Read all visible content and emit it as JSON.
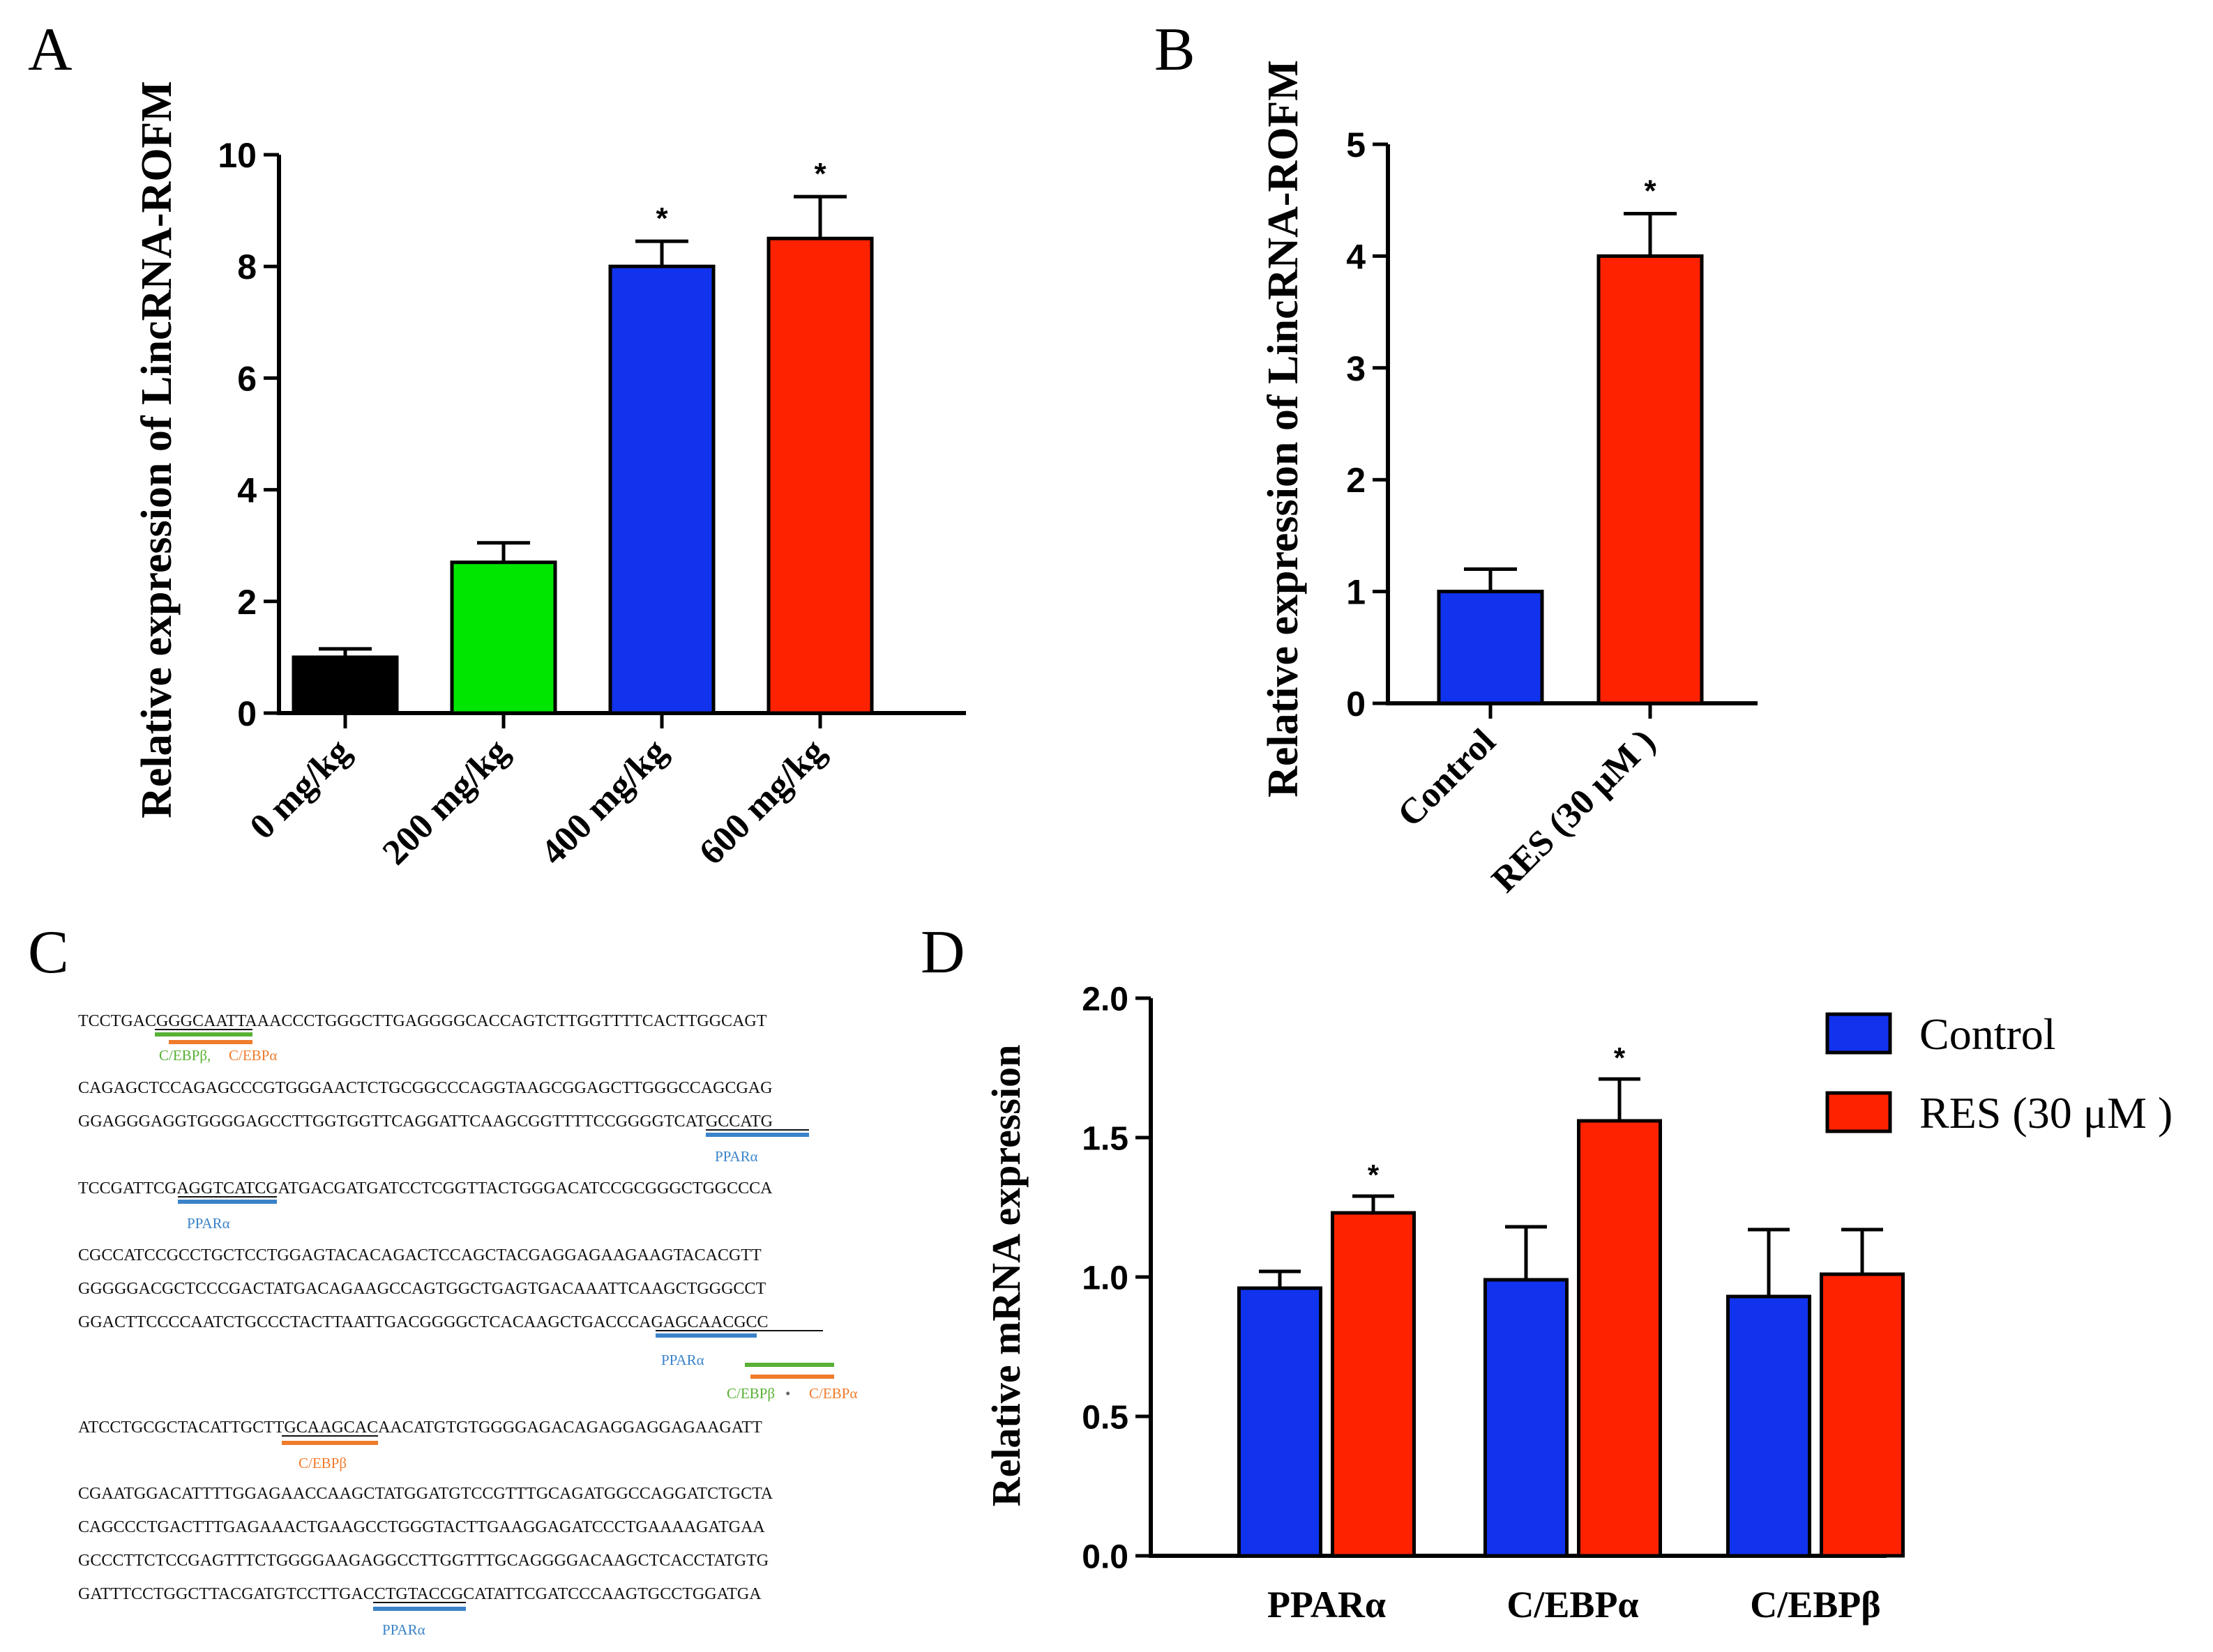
{
  "colors": {
    "black": "#000000",
    "green": "#00e600",
    "blue": "#1133ee",
    "red": "#ff2200",
    "ppar": "#3b83c9",
    "cebpb": "#58b035",
    "cebpa": "#ef7b2b"
  },
  "panels": {
    "A": "A",
    "B": "B",
    "C": "C",
    "D": "D"
  },
  "chart_data": [
    {
      "id": "A",
      "type": "bar",
      "title": "",
      "ylabel": "Relative expression of  LincRNA-ROFM",
      "xlabel": "",
      "categories": [
        "0 mg/kg",
        "200 mg/kg",
        "400 mg/kg",
        "600 mg/kg"
      ],
      "values": [
        1.0,
        2.7,
        8.0,
        8.5
      ],
      "errors": [
        0.15,
        0.35,
        0.45,
        0.75
      ],
      "significance": [
        "",
        "",
        "*",
        "*"
      ],
      "colors": [
        "#000000",
        "#00e600",
        "#1133ee",
        "#ff2200"
      ],
      "ylim": [
        0,
        10
      ],
      "yticks": [
        "0",
        "2",
        "4",
        "6",
        "8",
        "10"
      ]
    },
    {
      "id": "B",
      "type": "bar",
      "title": "",
      "ylabel": "Relative expression of  LincRNA-ROFM",
      "xlabel": "",
      "categories": [
        "Control",
        "RES (30 μM )"
      ],
      "values": [
        1.0,
        4.0
      ],
      "errors": [
        0.2,
        0.38
      ],
      "significance": [
        "",
        "*"
      ],
      "colors": [
        "#1133ee",
        "#ff2200"
      ],
      "ylim": [
        0,
        5
      ],
      "yticks": [
        "0",
        "1",
        "2",
        "3",
        "4",
        "5"
      ]
    },
    {
      "id": "D",
      "type": "bar",
      "title": "",
      "ylabel": "Relative mRNA expression",
      "xlabel": "",
      "categories": [
        "PPARα",
        "C/EBPα",
        "C/EBPβ"
      ],
      "series": [
        {
          "name": "Control",
          "color": "#1133ee",
          "values": [
            0.96,
            0.99,
            0.93
          ],
          "errors": [
            0.06,
            0.19,
            0.24
          ],
          "significance": [
            "",
            "",
            ""
          ]
        },
        {
          "name": "RES (30 μM )",
          "color": "#ff2200",
          "values": [
            1.23,
            1.56,
            1.01
          ],
          "errors": [
            0.06,
            0.15,
            0.16
          ],
          "significance": [
            "*",
            "*",
            ""
          ]
        }
      ],
      "ylim": [
        0,
        2.0
      ],
      "yticks": [
        "0.0",
        "0.5",
        "1.0",
        "1.5",
        "2.0"
      ],
      "legend": "top-right"
    }
  ],
  "sequence": {
    "lines": [
      "TCCTGACGGGCAATTAAACCCTGGGCTTGAGGGGCACCAGTCTTGGTTTTCACTTGGCAGT",
      "CAGAGCTCCAGAGCCCGTGGGAACTCTGCGGCCCAGGTAAGCGGAGCTTGGGCCAGCGAG",
      "GGAGGGAGGTGGGGAGCCTTGGTGGTTCAGGATTCAAGCGGTTTTCCGGGGTCATGCCATG",
      "TCCGATTCGAGGTCATCGATGACGATGATCCTCGGTTACTGGGACATCCGCGGGCTGGCCCA",
      "CGCCATCCGCCTGCTCCTGGAGTACACAGACTCCAGCTACGAGGAGAAGAAGTACACGTT",
      "GGGGGACGCTCCCGACTATGACAGAAGCCAGTGGCTGAGTGACAAATTCAAGCTGGGCCT",
      "GGACTTCCCCAATCTGCCCTACTTAATTGACGGGGCTCACAAGCTGACCCAGAGCAACGCC",
      "ATCCTGCGCTACATTGCTTGCAAGCACAACATGTGTGGGGAGACAGAGGAGGAGAAGATT",
      "CGAATGGACATTTTGGAGAACCAAGCTATGGATGTCCGTTTGCAGATGGCCAGGATCTGCTA",
      "CAGCCCTGACTTTGAGAAACTGAAGCCTGGGTACTTGAAGGAGATCCCTGAAAAGATGAA",
      "GCCCTTCTCCGAGTTTCTGGGGAAGAGGCCTTGGTTTGCAGGGGACAAGCTCACCTATGTG",
      "GATTTCCTGGCTTACGATGTCCTTGACCTGTACCGCATATTCGATCCCAAGTGCCTGGATGA"
    ],
    "sites": [
      {
        "label_a": "C/EBPβ,",
        "label_b": "C/EBPα"
      },
      {
        "label": "PPARα"
      },
      {
        "label": "PPARα"
      },
      {
        "label": "PPARα"
      },
      {
        "label_a": "C/EBPβ",
        "sep": "•",
        "label_b": "C/EBPα"
      },
      {
        "label": "C/EBPβ"
      },
      {
        "label": "PPARα"
      }
    ]
  }
}
